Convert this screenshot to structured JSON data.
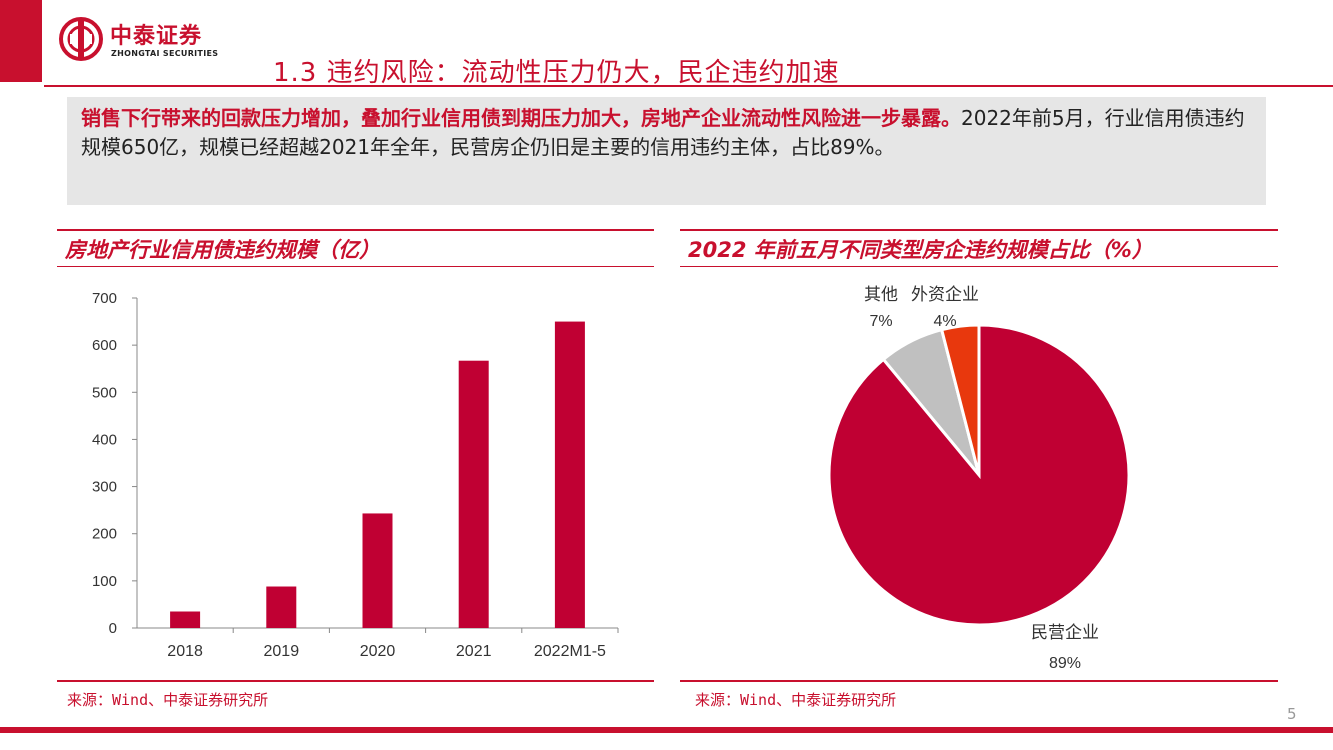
{
  "header": {
    "logo_cn": "中泰证券",
    "logo_en": "ZHONGTAI SECURITIES",
    "title": "1.3 违约风险：流动性压力仍大，民企违约加速"
  },
  "summary": {
    "highlight": "销售下行带来的回款压力增加，叠加行业信用债到期压力加大，房地产企业流动性风险进一步暴露。",
    "body": "2022年前5月，行业信用债违约规模650亿，规模已经超越2021年全年，民营房企仍旧是主要的信用违约主体，占比89%。"
  },
  "left_panel": {
    "title": "房地产行业信用债违约规模（亿）",
    "source": "来源：Wind、中泰证券研究所"
  },
  "right_panel": {
    "title": "2022 年前五月不同类型房企违约规模占比（%）",
    "source": "来源：Wind、中泰证券研究所"
  },
  "chart_data": [
    {
      "type": "bar",
      "title": "房地产行业信用债违约规模（亿）",
      "categories": [
        "2018",
        "2019",
        "2020",
        "2021",
        "2022M1-5"
      ],
      "values": [
        35,
        88,
        243,
        567,
        650
      ],
      "ylim": [
        0,
        700
      ],
      "yticks": [
        0,
        100,
        200,
        300,
        400,
        500,
        600,
        700
      ],
      "color": "#c00033"
    },
    {
      "type": "pie",
      "title": "2022 年前五月不同类型房企违约规模占比（%）",
      "slices": [
        {
          "label": "民营企业",
          "value": 89,
          "display": "89%",
          "color": "#c00033"
        },
        {
          "label": "其他",
          "value": 7,
          "display": "7%",
          "color": "#c0c0c0"
        },
        {
          "label": "外资企业",
          "value": 4,
          "display": "4%",
          "color": "#e8380d"
        }
      ]
    }
  ],
  "page_number": "5"
}
